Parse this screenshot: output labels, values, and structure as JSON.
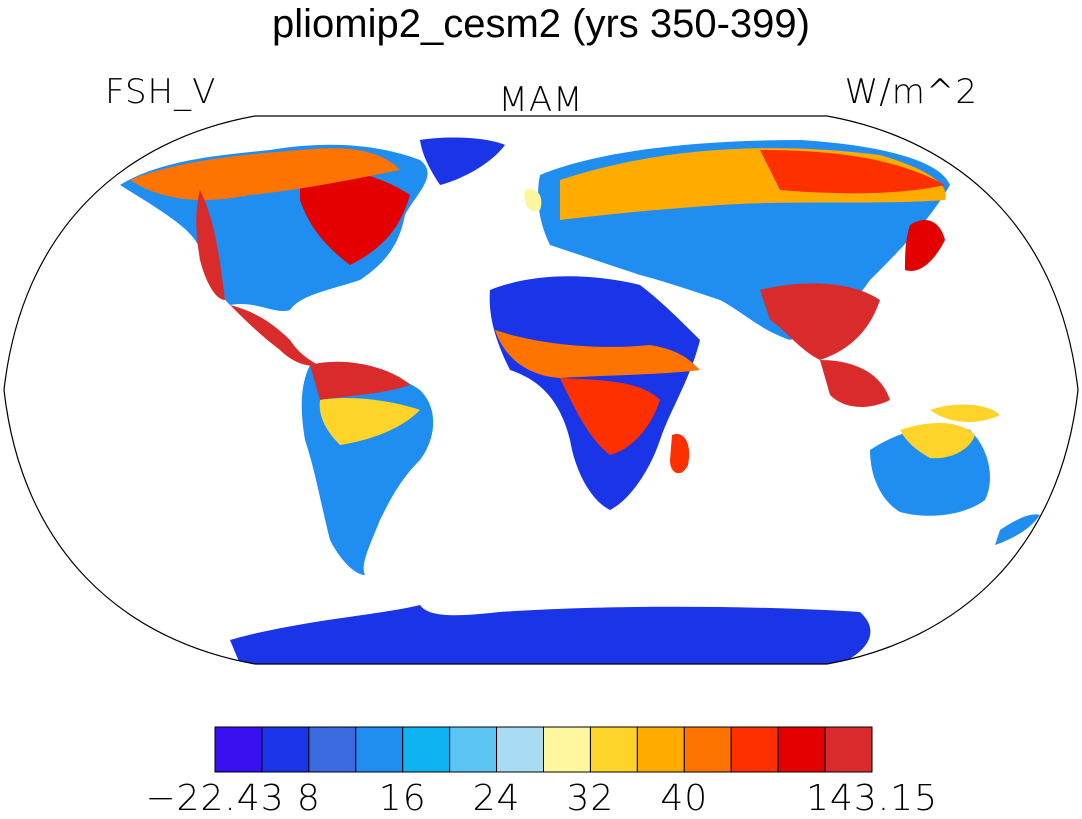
{
  "title": "pliomip2_cesm2 (yrs 350-399)",
  "left_label": "FSH_V",
  "center_label": "MAM",
  "right_label": "W/m^2",
  "colorbar": {
    "colors": [
      "#3a10f0",
      "#1a35e8",
      "#3b69e0",
      "#1f8ef0",
      "#10b3f2",
      "#5bc4f2",
      "#a9dcf2",
      "#fff7a0",
      "#ffd42a",
      "#ffab00",
      "#ff7400",
      "#ff3000",
      "#e40000",
      "#d92b2b"
    ],
    "tick_labels": [
      "−22.43",
      "8",
      "16",
      "24",
      "32",
      "40",
      "143.15"
    ]
  },
  "map": {
    "projection": "Robinson",
    "field": "FSH_V",
    "season": "MAM"
  }
}
